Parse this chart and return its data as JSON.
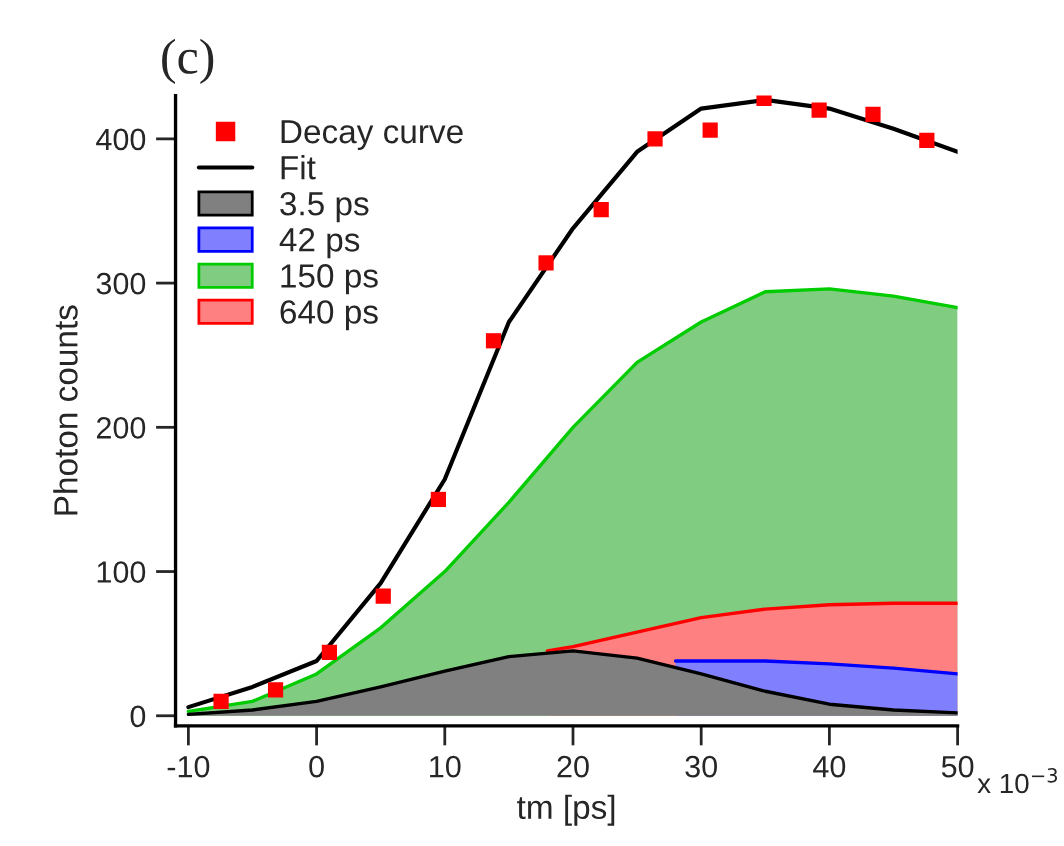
{
  "chart_data": {
    "type": "area",
    "title": "(c)",
    "xlabel": "tm [ps]",
    "ylabel": "Photon counts",
    "xlim": [
      -11,
      50
    ],
    "ylim": [
      -7,
      430
    ],
    "xticks": [
      -10,
      0,
      10,
      20,
      30,
      40,
      50
    ],
    "annotations": [
      "x 10$^{−3}$"
    ],
    "yticks": [
      0,
      100,
      200,
      300,
      400
    ],
    "grid": false,
    "legend": "top left",
    "series": [
      {
        "name": "Decay curve",
        "type": "scatter",
        "marker": "square",
        "color": "#ff0000",
        "x": [
          -7.45,
          -3.2,
          1.0,
          5.2,
          9.5,
          13.8,
          17.9,
          22.2,
          26.4,
          30.7,
          34.9,
          39.2,
          43.4,
          47.6
        ],
        "values": [
          10,
          18,
          44,
          83,
          150,
          260,
          314,
          351,
          400,
          406,
          428,
          420,
          417,
          399
        ]
      },
      {
        "name": "Fit",
        "type": "line",
        "marker": "none",
        "line_style": "solid",
        "color": "#000000",
        "x": [
          -10,
          -5,
          0,
          5,
          10,
          15,
          20,
          25,
          30,
          35,
          40,
          45,
          50
        ],
        "values": [
          6,
          20,
          38,
          92,
          164,
          273,
          338,
          391,
          421,
          427,
          421,
          407,
          391
        ]
      },
      {
        "name": "3.5 ps",
        "color": "#808080",
        "x": [
          -10,
          -5,
          0,
          5,
          10,
          15,
          20,
          25,
          30,
          35,
          40,
          45,
          50
        ],
        "values": [
          1,
          4,
          10,
          20,
          31,
          41,
          45,
          40,
          29,
          17,
          8,
          4,
          2
        ]
      },
      {
        "name": "42 ps",
        "color": "#8080ff",
        "x": [
          28,
          30,
          35,
          40,
          45,
          50
        ],
        "values": [
          38,
          38,
          38,
          36,
          33,
          29
        ]
      },
      {
        "name": "150 ps",
        "color": "#80cc80",
        "x": [
          -10,
          -5,
          0,
          5,
          10,
          15,
          20,
          25,
          30,
          35,
          40,
          45,
          50
        ],
        "values": [
          3,
          10,
          29,
          61,
          100,
          148,
          200,
          245,
          273,
          294,
          296,
          291,
          283
        ]
      },
      {
        "name": "640 ps",
        "color": "#ff8080",
        "x": [
          18,
          20,
          25,
          30,
          35,
          40,
          45,
          50
        ],
        "values": [
          45,
          48,
          58,
          68,
          74,
          77,
          78,
          78
        ]
      }
    ]
  }
}
